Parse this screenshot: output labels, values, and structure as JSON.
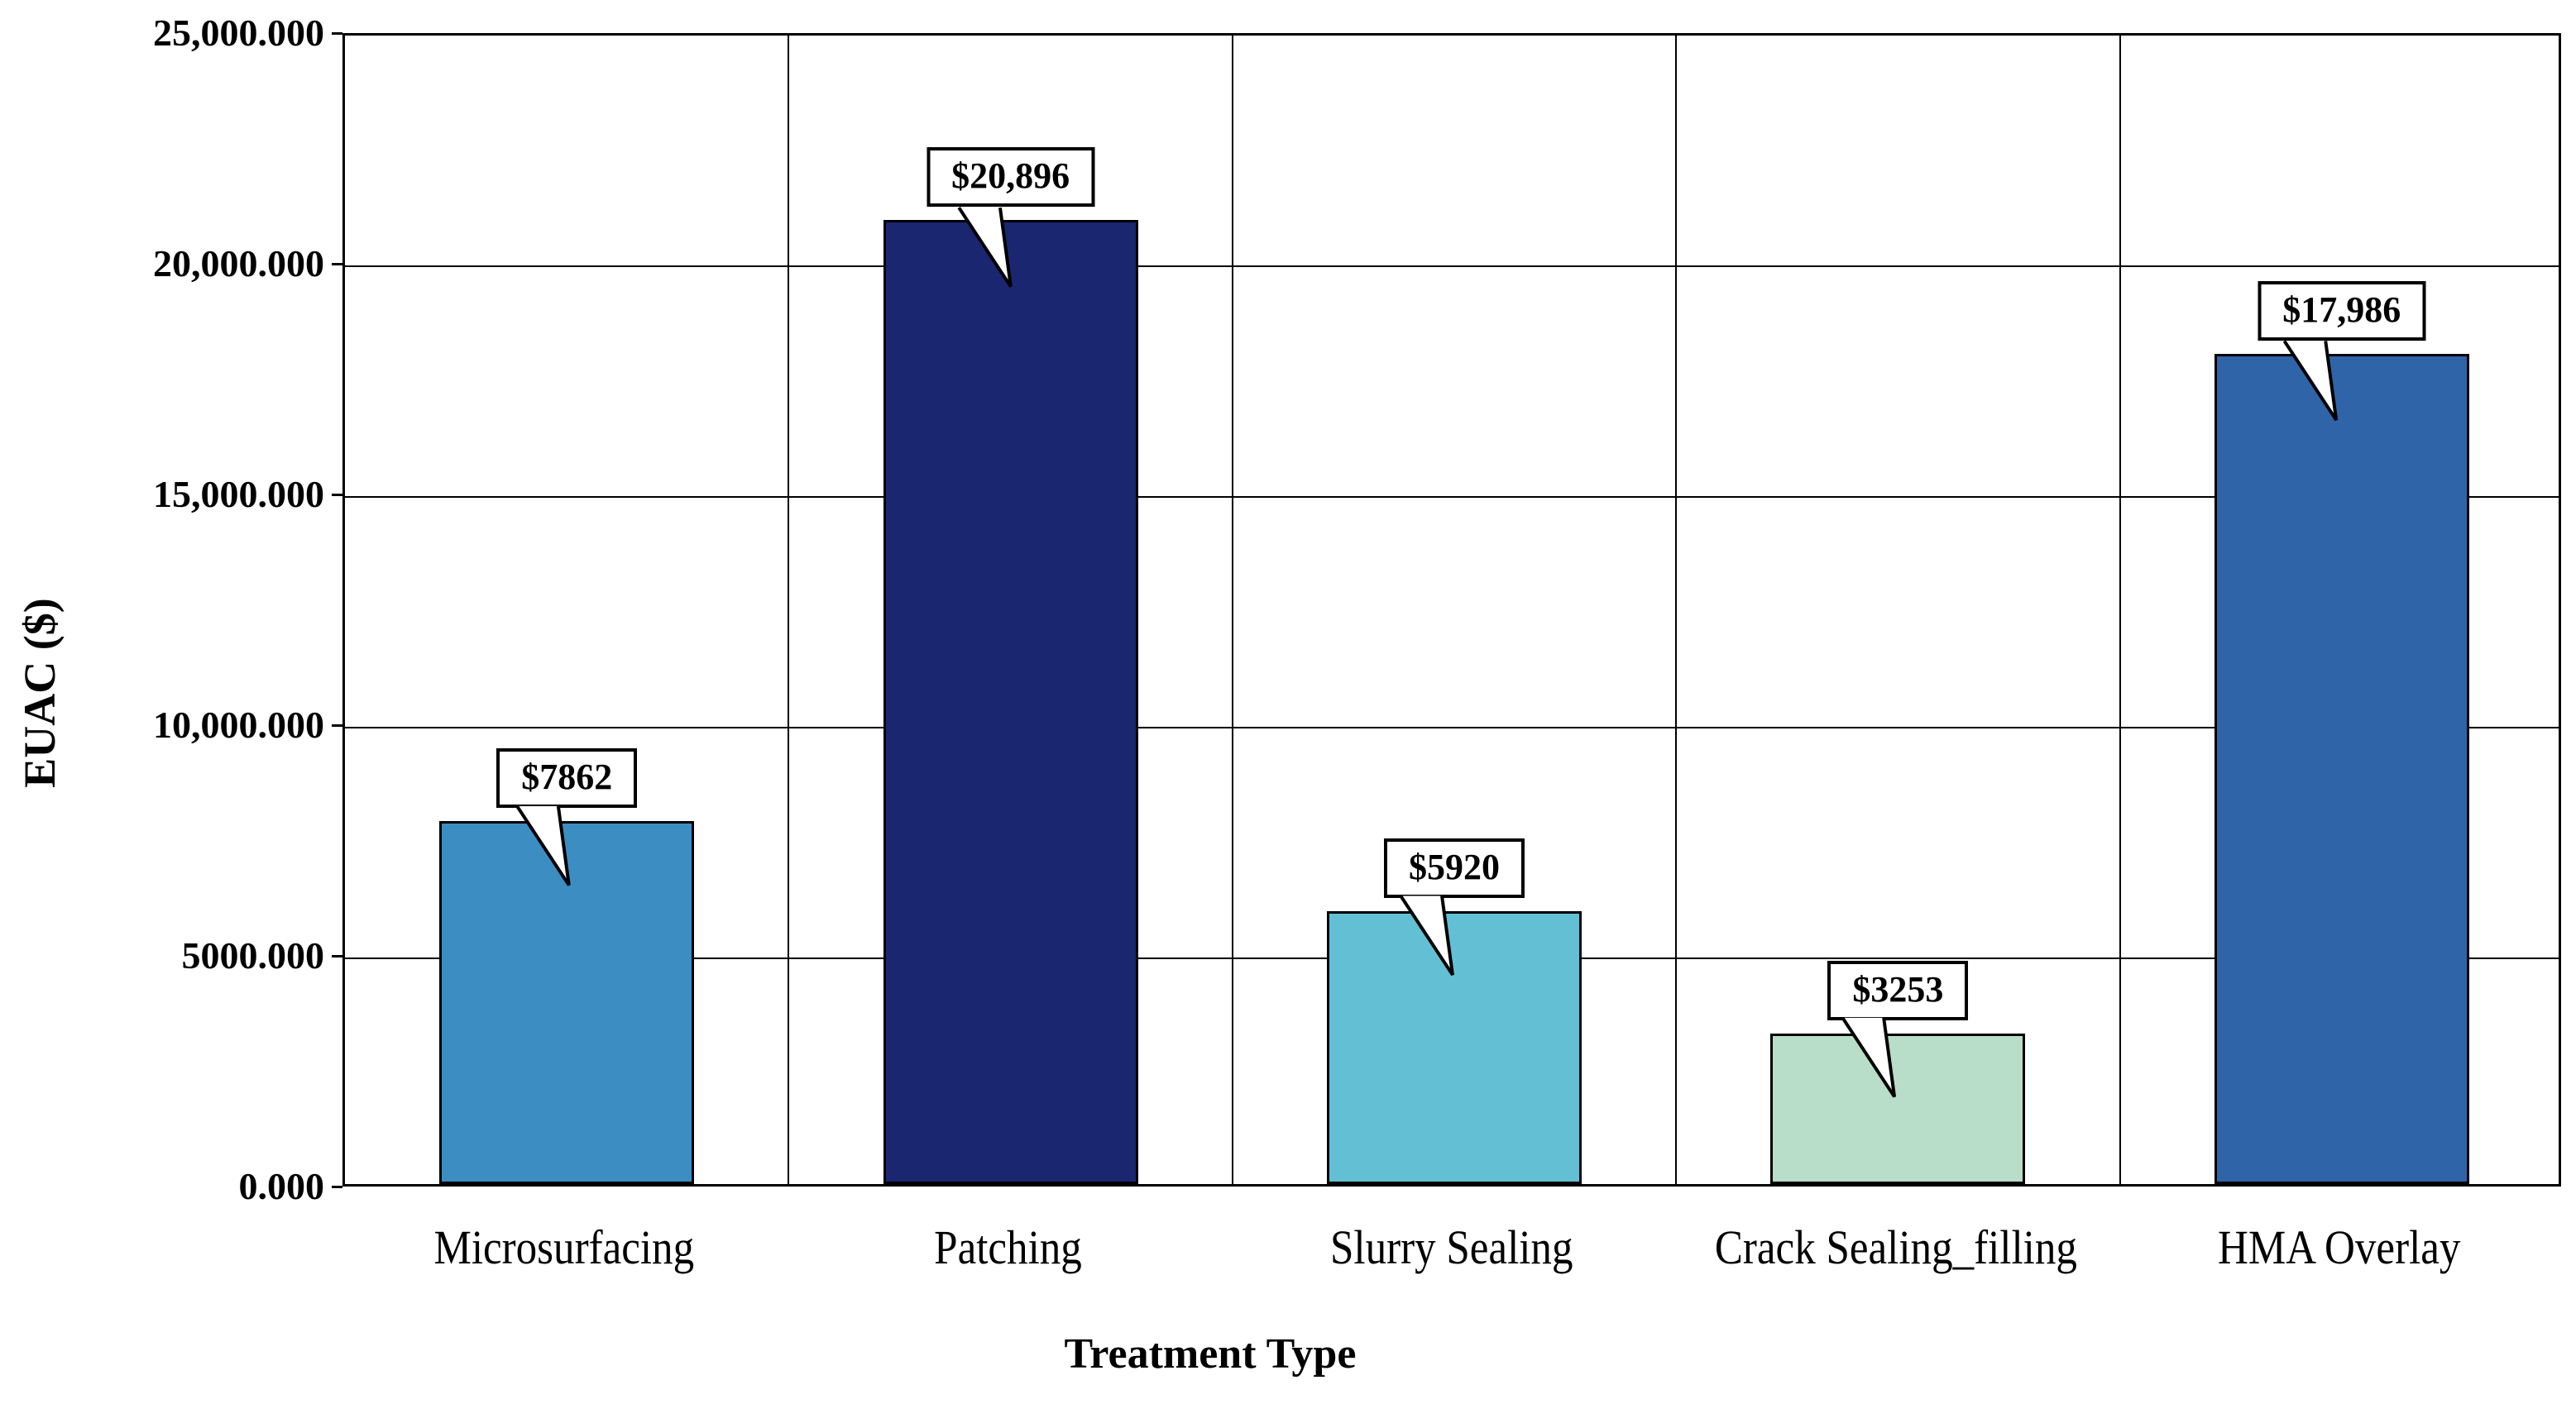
{
  "chart_data": {
    "type": "bar",
    "title": "",
    "xlabel": "Treatment Type",
    "ylabel": "EUAC ($)",
    "categories": [
      "Microsurfacing",
      "Patching",
      "Slurry Sealing",
      "Crack Sealing_filling",
      "HMA Overlay"
    ],
    "values": [
      7862,
      20896,
      5920,
      3253,
      17986
    ],
    "data_labels": [
      "$7862",
      "$20,896",
      "$5920",
      "$3253",
      "$17,986"
    ],
    "bar_colors": [
      "#3C8DC1",
      "#1B2670",
      "#63C0D4",
      "#B8DDC9",
      "#2F64A8"
    ],
    "ylim": [
      0,
      25000
    ],
    "ytick_values": [
      25000,
      20000,
      15000,
      10000,
      5000,
      0
    ],
    "ytick_labels": [
      "25,000.000",
      "20,000.000",
      "15,000.000",
      "10,000.000",
      "5000.000",
      "0.000"
    ],
    "grid": "major horizontal gridlines and vertical category separators, black",
    "legend": "none",
    "line_color": "#000000",
    "background_color": "#ffffff"
  }
}
